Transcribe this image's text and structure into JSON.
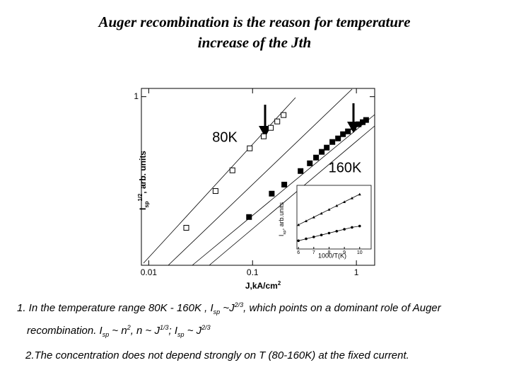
{
  "slide": {
    "title_lines": [
      "Auger recombination is the reason for temperature",
      "increase of the Jth"
    ],
    "notes": [
      {
        "parts": [
          {
            "text": "1. In the temperature range 80K - 160K , I",
            "style": "normal"
          },
          {
            "text": "sp",
            "style": "sub"
          },
          {
            "text": " ~J",
            "style": "normal"
          },
          {
            "text": "2/3",
            "style": "sup"
          },
          {
            "text": ", which points on a dominant role of Auger recombination.  I",
            "style": "normal"
          },
          {
            "text": "sp",
            "style": "sub"
          },
          {
            "text": " ~ n",
            "style": "normal"
          },
          {
            "text": "2",
            "style": "sup"
          },
          {
            "text": ", n ~ J",
            "style": "normal"
          },
          {
            "text": "1/3",
            "style": "sup"
          },
          {
            "text": "; I",
            "style": "normal"
          },
          {
            "text": "sp",
            "style": "sub"
          },
          {
            "text": " ~ J",
            "style": "normal"
          },
          {
            "text": "2/3",
            "style": "sup"
          }
        ]
      },
      {
        "parts": [
          {
            "text": "2.The concentration does not depend strongly on T (80-160K)  at the  fixed current.",
            "style": "normal"
          }
        ]
      }
    ]
  },
  "chart_data": [
    {
      "type": "scatter",
      "log_x": true,
      "log_y": true,
      "xlabel": [
        {
          "text": "J,kA/cm",
          "style": "normal"
        },
        {
          "text": "2",
          "style": "sup"
        }
      ],
      "ylabel": [
        {
          "text": "I",
          "style": "normal"
        },
        {
          "text": "sp",
          "style": "sub"
        },
        {
          "text": "1/2",
          "style": "sup"
        },
        {
          "text": ", arb. units",
          "style": "normal"
        }
      ],
      "xlim": [
        0.0085,
        1.5
      ],
      "ylim": [
        0.024,
        1.2
      ],
      "xticks": [
        0.01,
        0.1,
        1
      ],
      "yticks": [
        1
      ],
      "annotations": [
        "80K",
        "160K"
      ],
      "series": [
        {
          "name": "80K",
          "marker": "open-square",
          "x": [
            0.023,
            0.044,
            0.064,
            0.094,
            0.128,
            0.15,
            0.173,
            0.199
          ],
          "y": [
            0.055,
            0.124,
            0.196,
            0.319,
            0.416,
            0.502,
            0.578,
            0.666
          ]
        },
        {
          "name": "160K",
          "marker": "filled-square",
          "x": [
            0.0925,
            0.153,
            0.202,
            0.29,
            0.356,
            0.409,
            0.464,
            0.518,
            0.587,
            0.666,
            0.743,
            0.829,
            0.939,
            1.05,
            1.15,
            1.24
          ],
          "y": [
            0.0698,
            0.117,
            0.143,
            0.193,
            0.229,
            0.26,
            0.295,
            0.324,
            0.367,
            0.397,
            0.436,
            0.464,
            0.51,
            0.543,
            0.569,
            0.597
          ]
        }
      ]
    },
    {
      "type": "line",
      "xlabel": "1000/T(K)",
      "ylabel": [
        {
          "text": "I",
          "style": "normal"
        },
        {
          "text": "sp",
          "style": "sub"
        },
        {
          "text": ", arb.units",
          "style": "normal"
        }
      ],
      "xlim": [
        5.9,
        10.75
      ],
      "ylim": [
        0,
        1
      ],
      "xticks": [
        6,
        7,
        8,
        9,
        10
      ],
      "series": [
        {
          "marker": "triangle",
          "x": [
            6,
            6.5,
            7,
            7.5,
            8,
            8.5,
            9,
            9.5,
            10
          ],
          "values": [
            0.38,
            0.44,
            0.5,
            0.56,
            0.62,
            0.68,
            0.74,
            0.8,
            0.86
          ]
        },
        {
          "marker": "circle",
          "x": [
            6,
            6.5,
            7,
            7.5,
            8,
            8.5,
            9,
            9.5,
            10
          ],
          "values": [
            0.13,
            0.16,
            0.19,
            0.22,
            0.25,
            0.28,
            0.31,
            0.34,
            0.36
          ]
        }
      ]
    }
  ]
}
